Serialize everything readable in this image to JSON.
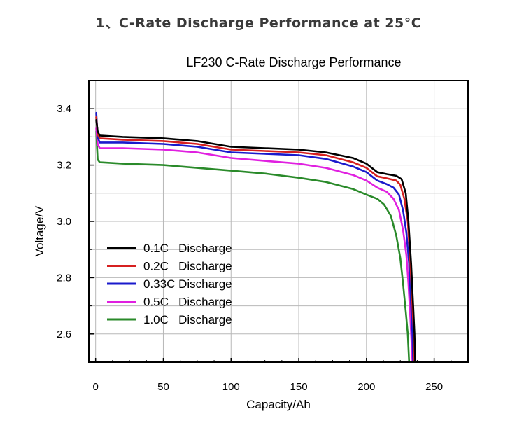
{
  "page": {
    "heading": "1、C-Rate Discharge Performance at 25°C"
  },
  "chart_data": {
    "type": "line",
    "title": "LF230 C-Rate Discharge Performance",
    "xlabel": "Capacity/Ah",
    "ylabel": "Voltage/V",
    "xlim": [
      -5,
      275
    ],
    "ylim": [
      2.5,
      3.5
    ],
    "x_ticks": [
      0,
      50,
      100,
      150,
      200,
      250
    ],
    "x_tick_labels": [
      "0",
      "50",
      "100",
      "150",
      "200",
      "250"
    ],
    "y_ticks": [
      2.6,
      2.8,
      3.0,
      3.2,
      3.4
    ],
    "y_tick_labels": [
      "2.6",
      "2.8",
      "3.0",
      "3.2",
      "3.4"
    ],
    "grid": true,
    "legend_position": "bottom-left",
    "series": [
      {
        "name": "0.1C   Discharge",
        "color": "#000000",
        "points": [
          [
            0.5,
            3.36
          ],
          [
            1.5,
            3.32
          ],
          [
            3,
            3.305
          ],
          [
            20,
            3.3
          ],
          [
            50,
            3.295
          ],
          [
            75,
            3.285
          ],
          [
            100,
            3.265
          ],
          [
            125,
            3.26
          ],
          [
            150,
            3.255
          ],
          [
            170,
            3.245
          ],
          [
            190,
            3.225
          ],
          [
            200,
            3.205
          ],
          [
            208,
            3.175
          ],
          [
            215,
            3.168
          ],
          [
            222,
            3.162
          ],
          [
            226,
            3.15
          ],
          [
            229,
            3.1
          ],
          [
            231,
            3.0
          ],
          [
            233,
            2.85
          ],
          [
            234.5,
            2.7
          ],
          [
            235.5,
            2.6
          ],
          [
            236,
            2.5
          ]
        ]
      },
      {
        "name": "0.2C   Discharge",
        "color": "#d62020",
        "points": [
          [
            0.5,
            3.37
          ],
          [
            1.5,
            3.31
          ],
          [
            3,
            3.295
          ],
          [
            20,
            3.29
          ],
          [
            50,
            3.285
          ],
          [
            75,
            3.275
          ],
          [
            100,
            3.255
          ],
          [
            125,
            3.25
          ],
          [
            150,
            3.245
          ],
          [
            170,
            3.235
          ],
          [
            190,
            3.21
          ],
          [
            200,
            3.19
          ],
          [
            208,
            3.16
          ],
          [
            215,
            3.153
          ],
          [
            222,
            3.145
          ],
          [
            225,
            3.13
          ],
          [
            228,
            3.08
          ],
          [
            230.5,
            3.0
          ],
          [
            232.5,
            2.85
          ],
          [
            234,
            2.7
          ],
          [
            235,
            2.6
          ],
          [
            235.5,
            2.5
          ]
        ]
      },
      {
        "name": "0.33C Discharge",
        "color": "#1a1acc",
        "points": [
          [
            0.5,
            3.385
          ],
          [
            1.5,
            3.3
          ],
          [
            3,
            3.28
          ],
          [
            20,
            3.28
          ],
          [
            50,
            3.275
          ],
          [
            75,
            3.265
          ],
          [
            100,
            3.245
          ],
          [
            125,
            3.24
          ],
          [
            150,
            3.235
          ],
          [
            170,
            3.222
          ],
          [
            190,
            3.195
          ],
          [
            200,
            3.175
          ],
          [
            208,
            3.145
          ],
          [
            215,
            3.132
          ],
          [
            220,
            3.12
          ],
          [
            224,
            3.095
          ],
          [
            227,
            3.04
          ],
          [
            229.5,
            2.96
          ],
          [
            231.5,
            2.85
          ],
          [
            233,
            2.7
          ],
          [
            234,
            2.6
          ],
          [
            234.5,
            2.5
          ]
        ]
      },
      {
        "name": "0.5C   Discharge",
        "color": "#e020e0",
        "points": [
          [
            0.5,
            3.33
          ],
          [
            1.5,
            3.275
          ],
          [
            3,
            3.26
          ],
          [
            20,
            3.26
          ],
          [
            50,
            3.255
          ],
          [
            75,
            3.245
          ],
          [
            100,
            3.225
          ],
          [
            125,
            3.215
          ],
          [
            150,
            3.205
          ],
          [
            170,
            3.19
          ],
          [
            190,
            3.165
          ],
          [
            200,
            3.145
          ],
          [
            208,
            3.12
          ],
          [
            215,
            3.105
          ],
          [
            220,
            3.08
          ],
          [
            224,
            3.04
          ],
          [
            227,
            2.97
          ],
          [
            229.5,
            2.88
          ],
          [
            231,
            2.78
          ],
          [
            232.5,
            2.65
          ],
          [
            233.5,
            2.55
          ],
          [
            234,
            2.5
          ]
        ]
      },
      {
        "name": "1.0C   Discharge",
        "color": "#2a8a2a",
        "points": [
          [
            0.5,
            3.32
          ],
          [
            1.5,
            3.22
          ],
          [
            3,
            3.21
          ],
          [
            20,
            3.205
          ],
          [
            50,
            3.2
          ],
          [
            75,
            3.19
          ],
          [
            100,
            3.18
          ],
          [
            125,
            3.17
          ],
          [
            150,
            3.155
          ],
          [
            170,
            3.14
          ],
          [
            190,
            3.115
          ],
          [
            200,
            3.095
          ],
          [
            208,
            3.08
          ],
          [
            213,
            3.06
          ],
          [
            218,
            3.02
          ],
          [
            222,
            2.95
          ],
          [
            225,
            2.87
          ],
          [
            227,
            2.78
          ],
          [
            229,
            2.68
          ],
          [
            230.5,
            2.6
          ],
          [
            231.5,
            2.5
          ]
        ]
      }
    ]
  }
}
